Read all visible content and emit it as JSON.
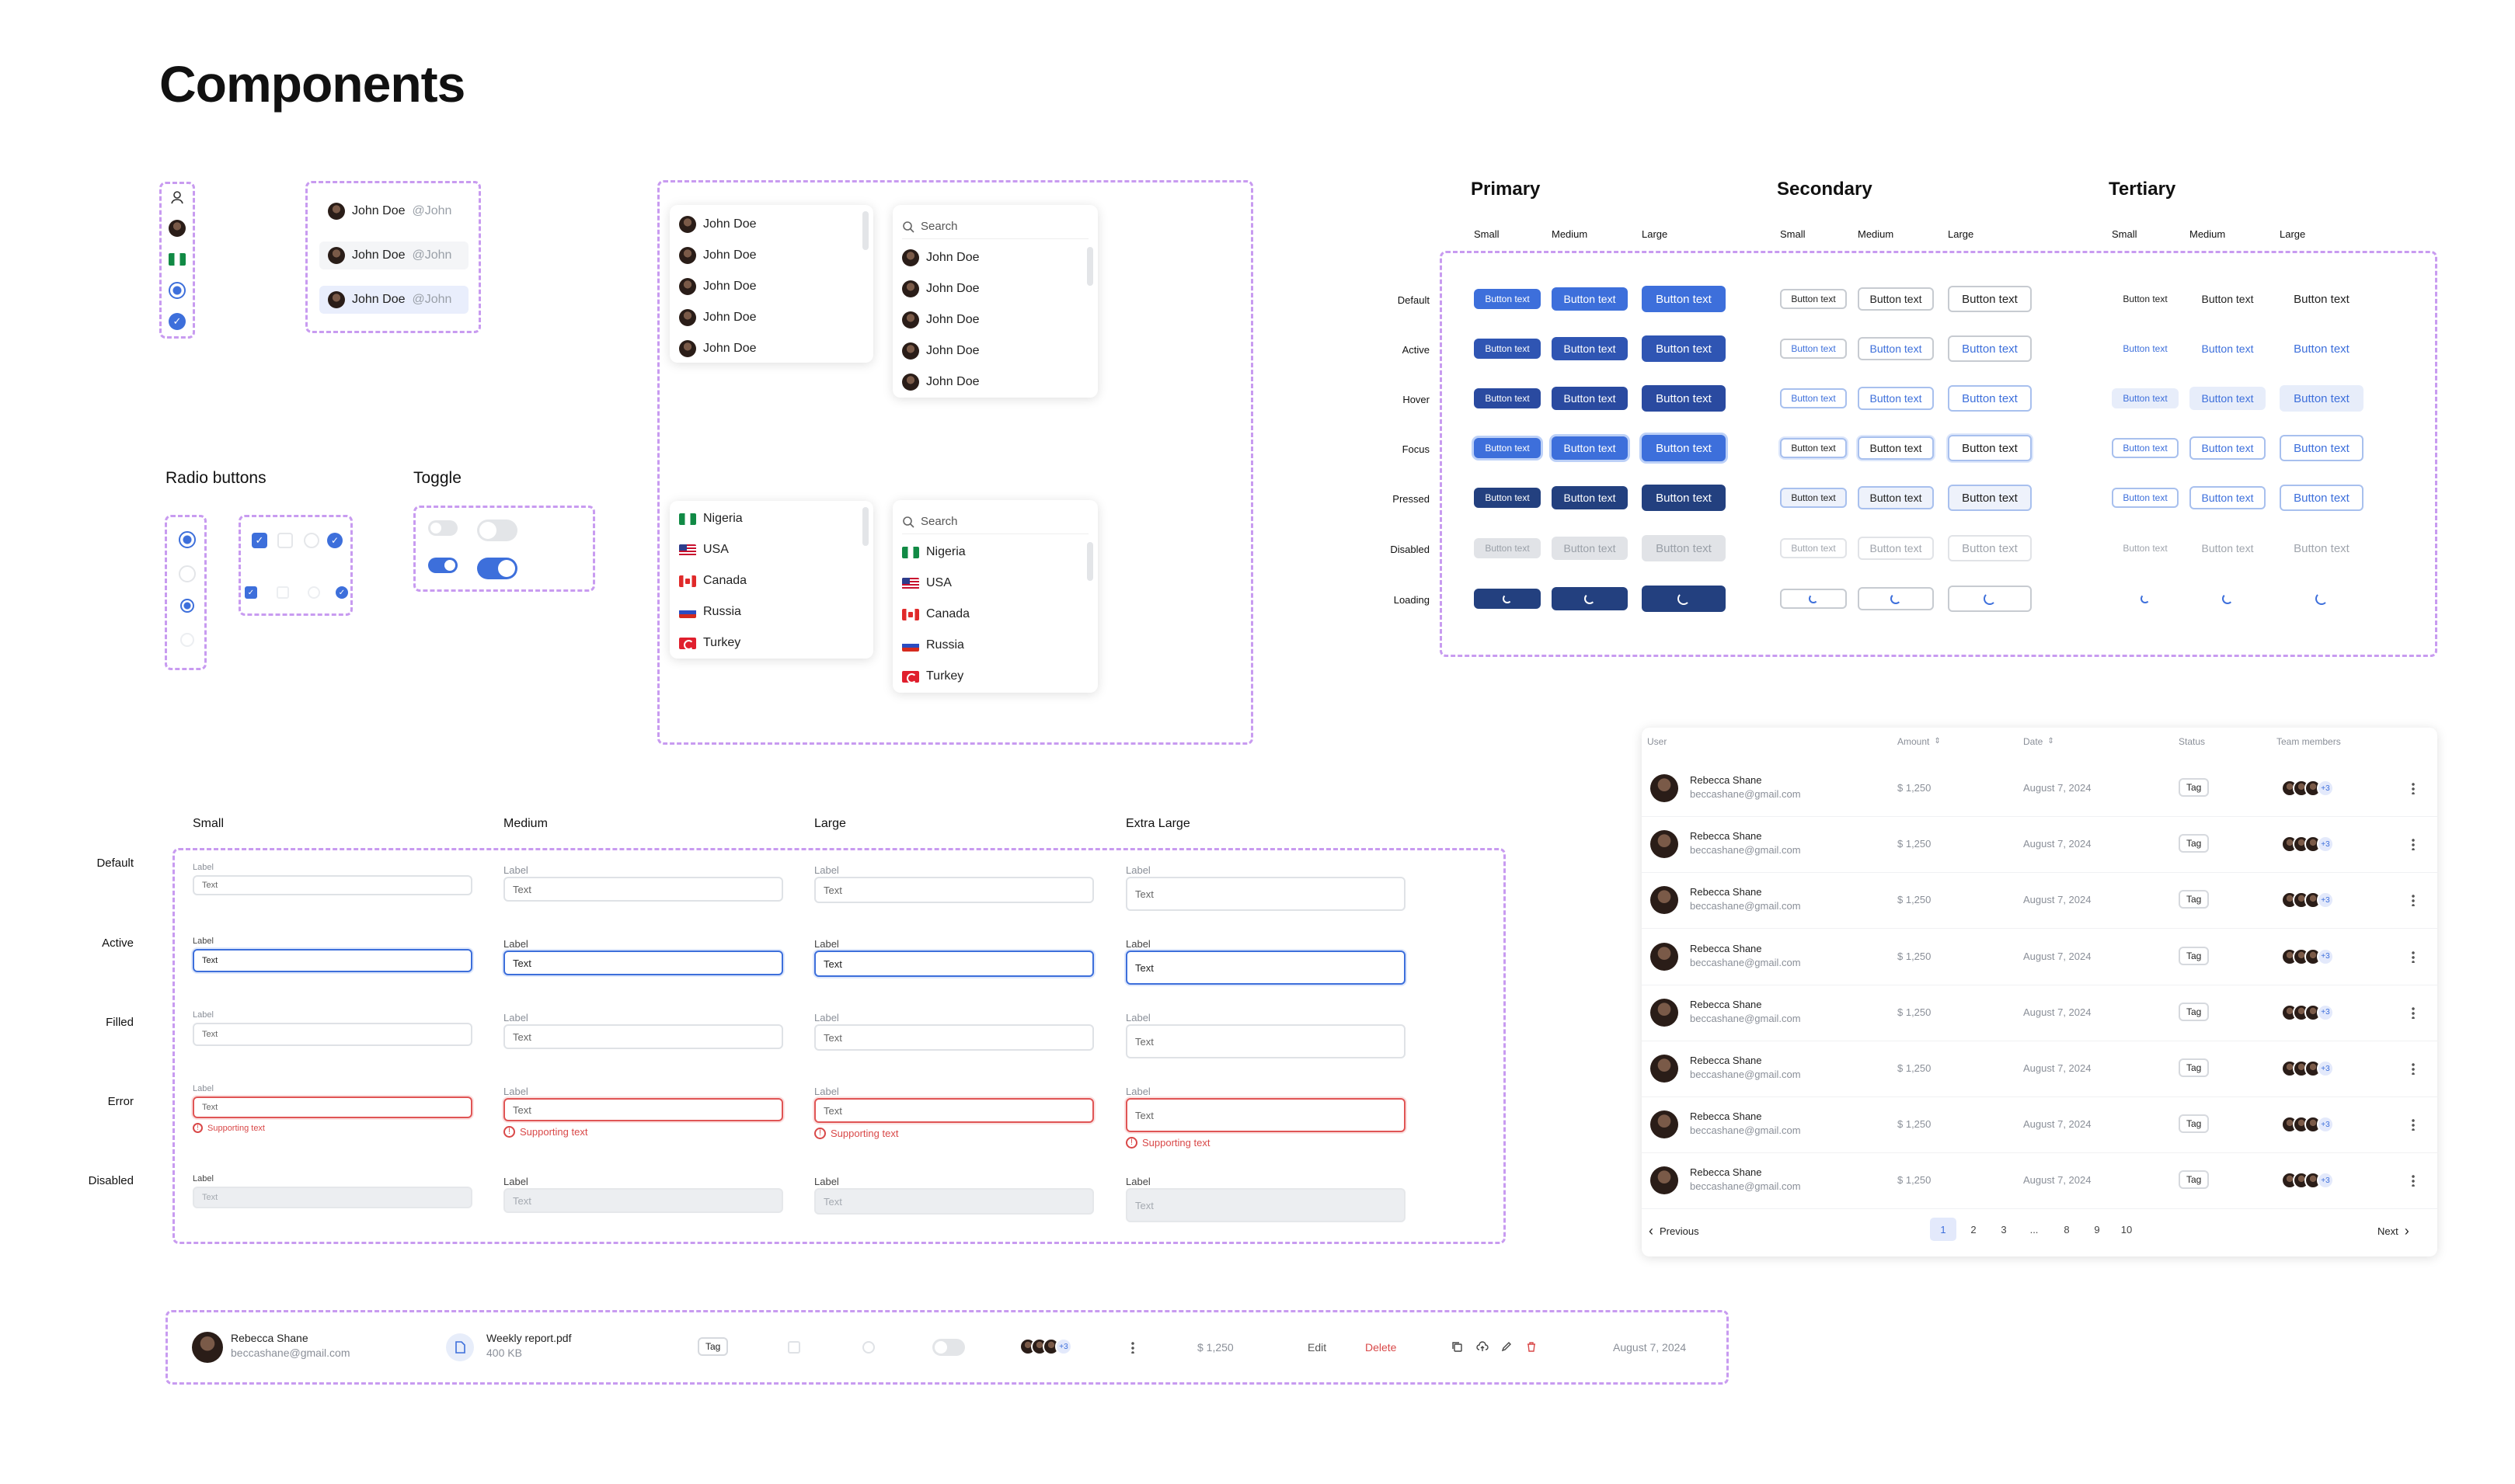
{
  "page_title": "Components",
  "user_list": {
    "items": [
      {
        "name": "John Doe",
        "handle": "@John"
      },
      {
        "name": "John Doe",
        "handle": "@John"
      },
      {
        "name": "John Doe",
        "handle": "@John"
      }
    ]
  },
  "dropdown_users": {
    "items": [
      "John Doe",
      "John Doe",
      "John Doe",
      "John Doe",
      "John Doe"
    ]
  },
  "dropdown_users_search": {
    "placeholder": "Search",
    "items": [
      "John Doe",
      "John Doe",
      "John Doe",
      "John Doe",
      "John Doe"
    ]
  },
  "dropdown_countries": {
    "items": [
      "Nigeria",
      "USA",
      "Canada",
      "Russia",
      "Turkey"
    ]
  },
  "dropdown_countries_search": {
    "placeholder": "Search",
    "items": [
      "Nigeria",
      "USA",
      "Canada",
      "Russia",
      "Turkey"
    ]
  },
  "radio_section": {
    "title": "Radio buttons"
  },
  "toggle_section": {
    "title": "Toggle"
  },
  "buttons": {
    "groups": [
      {
        "title": "Primary",
        "sizes": [
          "Small",
          "Medium",
          "Large"
        ]
      },
      {
        "title": "Secondary",
        "sizes": [
          "Small",
          "Medium",
          "Large"
        ]
      },
      {
        "title": "Tertiary",
        "sizes": [
          "Small",
          "Medium",
          "Large"
        ]
      }
    ],
    "states": [
      "Default",
      "Active",
      "Hover",
      "Focus",
      "Pressed",
      "Disabled",
      "Loading"
    ],
    "label": "Button text"
  },
  "inputs": {
    "sizes": [
      "Small",
      "Medium",
      "Large",
      "Extra Large"
    ],
    "states": [
      "Default",
      "Active",
      "Filled",
      "Error",
      "Disabled"
    ],
    "label": "Label",
    "value": "Text",
    "supporting": "Supporting text"
  },
  "table": {
    "headers": [
      "User",
      "Amount",
      "Date",
      "Status",
      "Team members"
    ],
    "rows": [
      {
        "name": "Rebecca Shane",
        "email": "beccashane@gmail.com",
        "amount": "$ 1,250",
        "date": "August 7, 2024",
        "status": "Tag",
        "extra": "+3"
      },
      {
        "name": "Rebecca Shane",
        "email": "beccashane@gmail.com",
        "amount": "$ 1,250",
        "date": "August 7, 2024",
        "status": "Tag",
        "extra": "+3"
      },
      {
        "name": "Rebecca Shane",
        "email": "beccashane@gmail.com",
        "amount": "$ 1,250",
        "date": "August 7, 2024",
        "status": "Tag",
        "extra": "+3"
      },
      {
        "name": "Rebecca Shane",
        "email": "beccashane@gmail.com",
        "amount": "$ 1,250",
        "date": "August 7, 2024",
        "status": "Tag",
        "extra": "+3"
      },
      {
        "name": "Rebecca Shane",
        "email": "beccashane@gmail.com",
        "amount": "$ 1,250",
        "date": "August 7, 2024",
        "status": "Tag",
        "extra": "+3"
      },
      {
        "name": "Rebecca Shane",
        "email": "beccashane@gmail.com",
        "amount": "$ 1,250",
        "date": "August 7, 2024",
        "status": "Tag",
        "extra": "+3"
      },
      {
        "name": "Rebecca Shane",
        "email": "beccashane@gmail.com",
        "amount": "$ 1,250",
        "date": "August 7, 2024",
        "status": "Tag",
        "extra": "+3"
      },
      {
        "name": "Rebecca Shane",
        "email": "beccashane@gmail.com",
        "amount": "$ 1,250",
        "date": "August 7, 2024",
        "status": "Tag",
        "extra": "+3"
      }
    ],
    "pagination": {
      "previous": "Previous",
      "next": "Next",
      "pages": [
        "1",
        "2",
        "3",
        "...",
        "8",
        "9",
        "10"
      ],
      "current": "1"
    }
  },
  "cells": {
    "name": "Rebecca Shane",
    "email": "beccashane@gmail.com",
    "file_name": "Weekly report.pdf",
    "file_size": "400 KB",
    "tag": "Tag",
    "extra": "+3",
    "amount": "$ 1,250",
    "edit": "Edit",
    "delete": "Delete",
    "date": "August 7, 2024"
  },
  "colors": {
    "primary": "#3d6fdb",
    "primary_dark": "#23407f",
    "danger": "#d94848",
    "dashed_border": "#c89bf0"
  },
  "icons": [
    "user-icon",
    "search-icon",
    "file-icon",
    "copy-icon",
    "upload-icon",
    "edit-icon",
    "trash-icon",
    "sort-icon",
    "chevron-left-icon",
    "chevron-right-icon",
    "kebab-icon",
    "error-icon",
    "spinner-icon"
  ]
}
